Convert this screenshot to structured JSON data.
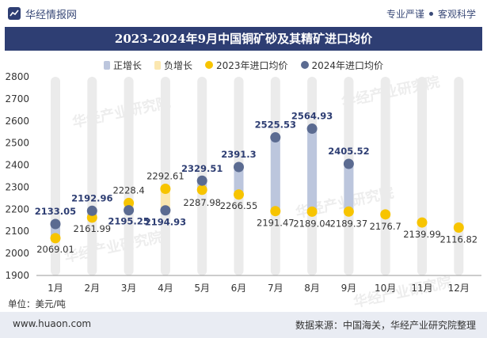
{
  "brand": {
    "site_name": "华经情报网",
    "tagline_left": "专业严谨",
    "tagline_right": "客观科学"
  },
  "title": "2023-2024年9月中国铜矿砂及其精矿进口均价",
  "watermark": "华经产业研究院",
  "unit_label": "单位：美元/吨",
  "footer": {
    "url": "www.huaon.com",
    "source": "数据来源：中国海关，华经产业研究院整理"
  },
  "colors": {
    "header_bg": "#2e3e73",
    "pos_bar": "#bcc6dd",
    "neg_bar": "#fbe7b0",
    "series_2023": "#f7c400",
    "series_2024": "#5b6b91",
    "label_2024": "#2e3e73",
    "track": "#ebebeb"
  },
  "chart_data": {
    "type": "line",
    "title": "2023-2024年9月中国铜矿砂及其精矿进口均价",
    "xlabel": "",
    "ylabel": "美元/吨",
    "ylim": [
      1900,
      2800
    ],
    "yticks": [
      1900,
      2000,
      2100,
      2200,
      2300,
      2400,
      2500,
      2600,
      2700,
      2800
    ],
    "categories": [
      "1月",
      "2月",
      "3月",
      "4月",
      "5月",
      "6月",
      "7月",
      "8月",
      "9月",
      "10月",
      "11月",
      "12月"
    ],
    "legend": [
      "正增长",
      "负增长",
      "2023年进口均价",
      "2024年进口均价"
    ],
    "series": [
      {
        "name": "2023年进口均价",
        "values": [
          2069.01,
          2161.99,
          2228.4,
          2292.61,
          2287.98,
          2266.55,
          2191.47,
          2189.04,
          2189.37,
          2176.7,
          2139.99,
          2116.82
        ]
      },
      {
        "name": "2024年进口均价",
        "values": [
          2133.05,
          2192.96,
          2195.25,
          2194.93,
          2329.51,
          2391.3,
          2525.53,
          2564.93,
          2405.52,
          null,
          null,
          null
        ]
      }
    ],
    "labels_2023": [
      "2069.01",
      "2161.99",
      "2228.4",
      "2292.61",
      "2287.98",
      "2266.55",
      "2191.47",
      "2189.04",
      "2189.37",
      "2176.7",
      "2139.99",
      "2116.82"
    ],
    "labels_2024": [
      "2133.05",
      "2192.96",
      "2195.25",
      "2194.93",
      "2329.51",
      "2391.3",
      "2525.53",
      "2564.93",
      "2405.52",
      null,
      null,
      null
    ]
  }
}
